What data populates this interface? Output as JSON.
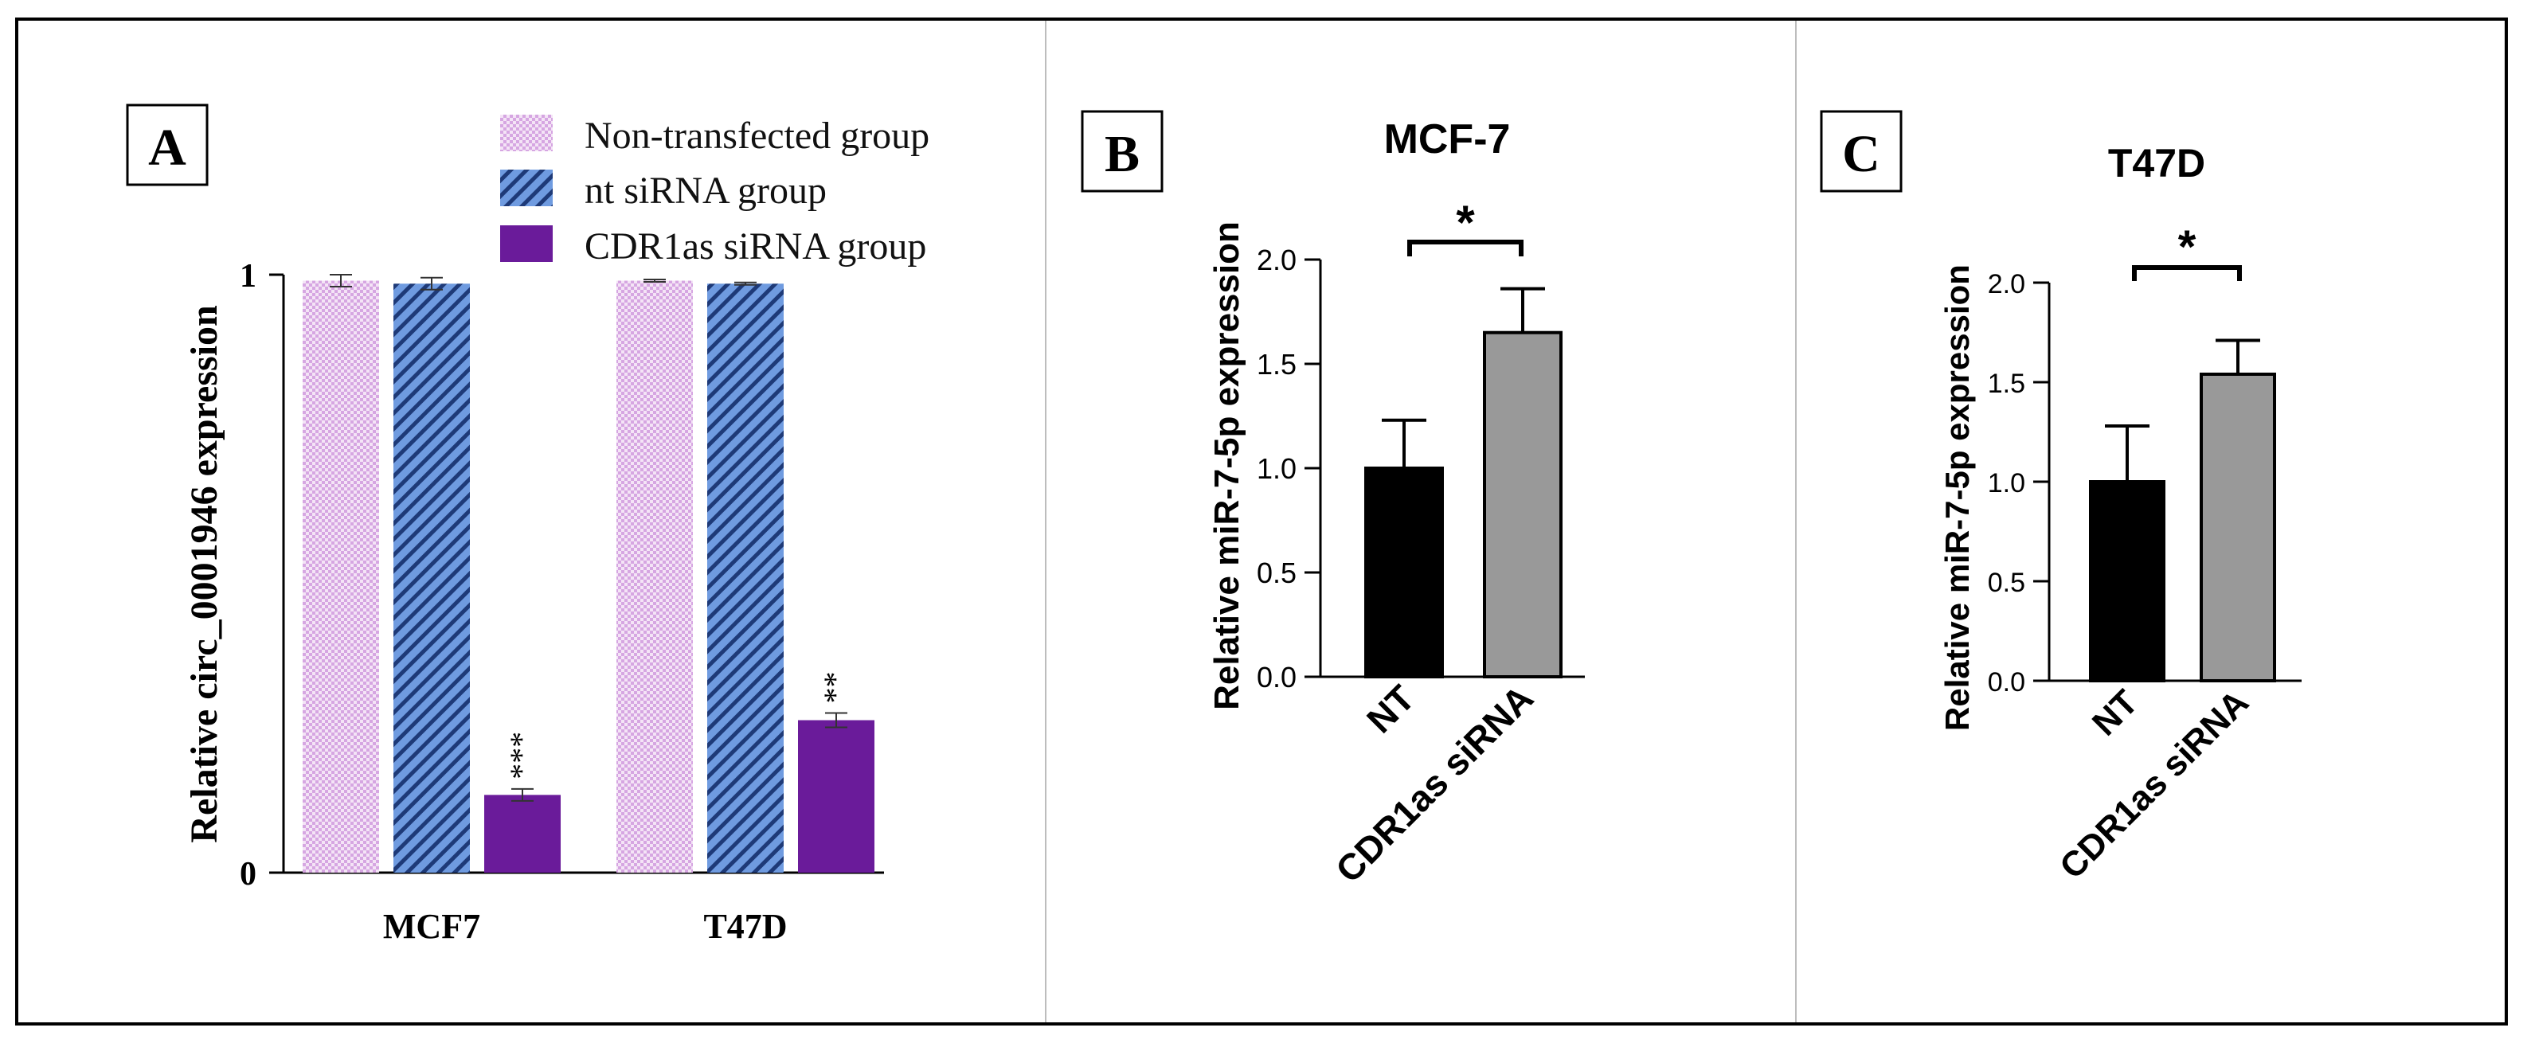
{
  "panels": {
    "a": {
      "label": "A",
      "chart_data": {
        "type": "bar",
        "categories": [
          "MCF7",
          "T47D"
        ],
        "ylabel": "Relative circ_0001946 expression",
        "ylim": [
          0,
          1
        ],
        "yticks": [
          "0",
          "1"
        ],
        "legend": "top-right",
        "series": [
          {
            "name": "Non-transfected group",
            "values": [
              0.99,
              0.99
            ],
            "errors": [
              0.01,
              0.002
            ],
            "color": "#e6c3ef",
            "pattern": "checker"
          },
          {
            "name": "nt siRNA group",
            "values": [
              0.985,
              0.985
            ],
            "errors": [
              0.01,
              0.002
            ],
            "color": "#5a8ad8",
            "pattern": "diagonal-stripes"
          },
          {
            "name": "CDR1as siRNA group",
            "values": [
              0.13,
              0.255
            ],
            "errors": [
              0.01,
              0.012
            ],
            "color": "#6a1b9a",
            "pattern": "solid"
          }
        ],
        "annotations": [
          {
            "category": "MCF7",
            "series": "CDR1as siRNA group",
            "text": "***"
          },
          {
            "category": "T47D",
            "series": "CDR1as siRNA group",
            "text": "**"
          }
        ]
      }
    },
    "b": {
      "label": "B",
      "chart_data": {
        "type": "bar",
        "title": "MCF-7",
        "categories": [
          "NT",
          "CDR1as siRNA"
        ],
        "values": [
          1.0,
          1.65
        ],
        "errors": [
          0.23,
          0.21
        ],
        "colors": [
          "#000000",
          "#999999"
        ],
        "ylabel": "Relative miR-7-5p expression",
        "ylim": [
          0,
          2.0
        ],
        "yticks": [
          "0.0",
          "0.5",
          "1.0",
          "1.5",
          "2.0"
        ],
        "significance": "*"
      }
    },
    "c": {
      "label": "C",
      "chart_data": {
        "type": "bar",
        "title": "T47D",
        "categories": [
          "NT",
          "CDR1as siRNA"
        ],
        "values": [
          1.0,
          1.54
        ],
        "errors": [
          0.28,
          0.17
        ],
        "colors": [
          "#000000",
          "#999999"
        ],
        "ylabel": "Relative miR-7-5p expression",
        "ylim": [
          0,
          2.0
        ],
        "yticks": [
          "0.0",
          "0.5",
          "1.0",
          "1.5",
          "2.0"
        ],
        "significance": "*"
      }
    }
  }
}
